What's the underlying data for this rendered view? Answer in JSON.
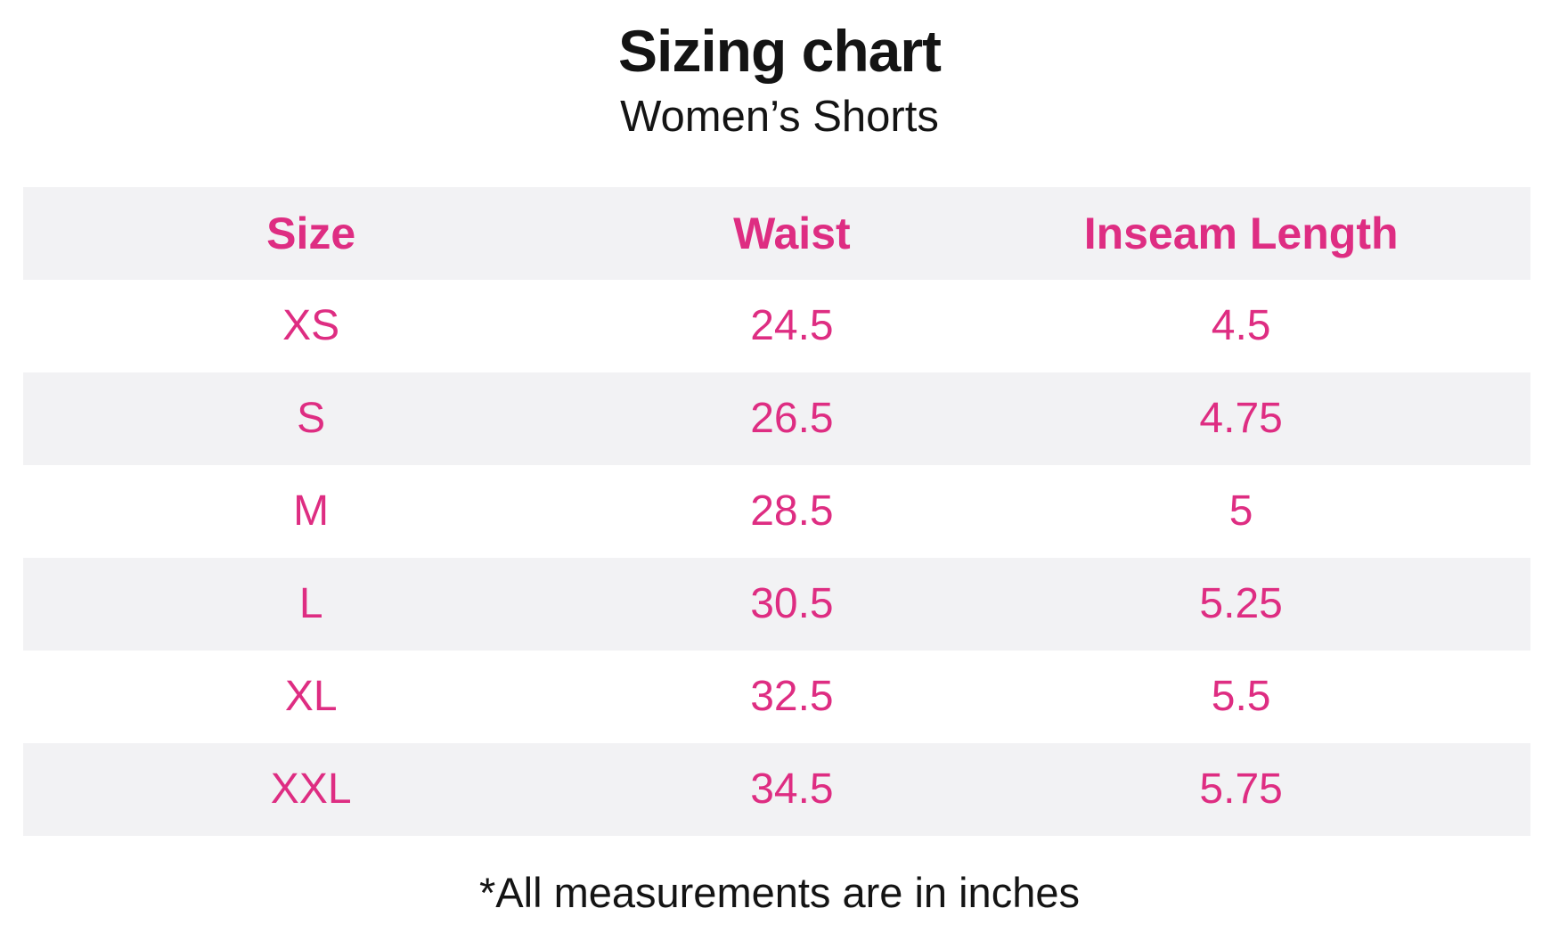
{
  "page": {
    "title": "Sizing chart",
    "subtitle": "Women’s Shorts",
    "footnote": "*All measurements are in inches"
  },
  "table": {
    "columns": [
      "Size",
      "Waist",
      "Inseam Length"
    ],
    "rows": [
      {
        "size": "XS",
        "waist": "24.5",
        "inseam": "4.5"
      },
      {
        "size": "S",
        "waist": "26.5",
        "inseam": "4.75"
      },
      {
        "size": "M",
        "waist": "28.5",
        "inseam": "5"
      },
      {
        "size": "L",
        "waist": "30.5",
        "inseam": "5.25"
      },
      {
        "size": "XL",
        "waist": "32.5",
        "inseam": "5.5"
      },
      {
        "size": "XXL",
        "waist": "34.5",
        "inseam": "5.75"
      }
    ],
    "units": "inches"
  },
  "colors": {
    "accent_pink": "#de2d82",
    "row_stripe": "#f2f2f4",
    "text_ink": "#141414",
    "background": "#ffffff"
  }
}
